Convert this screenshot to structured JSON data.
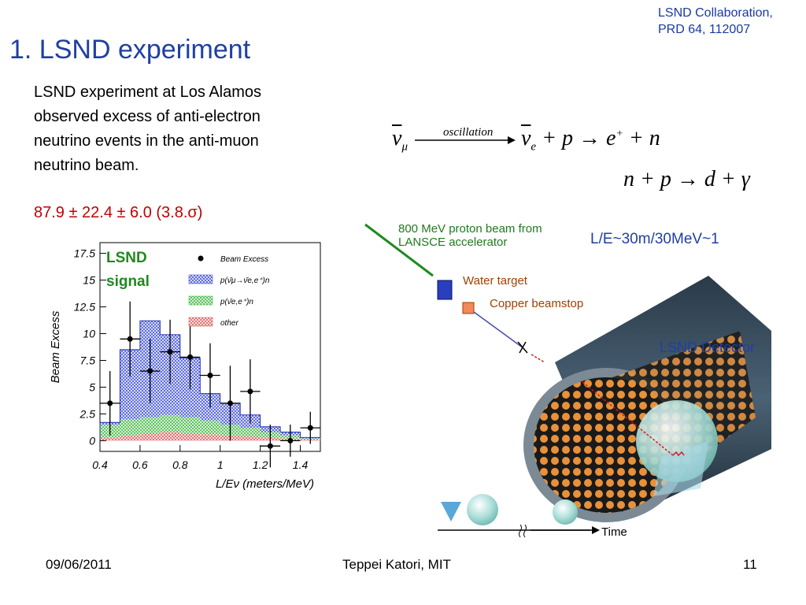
{
  "slide": {
    "title": "1. LSND experiment",
    "reference": "LSND Collaboration,\nPRD 64, 112007",
    "description_lines": [
      "LSND experiment at Los Alamos",
      "observed excess of anti-electron",
      "neutrino events in the anti-muon",
      "neutrino beam."
    ],
    "result": "87.9 ± 22.4 ± 6.0  (3.8.σ)",
    "equation1": {
      "over_arrow": "oscillation",
      "lhs": "ν",
      "lhs_sub": "μ",
      "rhs": "ν",
      "rhs_sub": "e",
      "rest": " + p → e",
      "rest_sup": "+",
      "tail": " + n"
    },
    "equation2": "n + p → d + γ"
  },
  "footer": {
    "date": "09/06/2011",
    "author": "Teppei Katori, MIT",
    "page": "11"
  },
  "detector_figure": {
    "beam_label": "800 MeV proton beam from\nLANSCE accelerator",
    "le_label": "L/E~30m/30MeV~1",
    "water_target": "Water target",
    "copper_beamstop": "Copper beamstop",
    "detector_label": "LSND Detector",
    "time_label": "Time"
  },
  "chart_data": {
    "type": "bar",
    "ylabel": "Beam Excess",
    "xlabel": "L/Eν (meters/MeV)",
    "signal_label_1": "LSND",
    "signal_label_2": "signal",
    "xlim": [
      0.4,
      1.5
    ],
    "ylim": [
      -1,
      18.5
    ],
    "x_ticks": [
      "0.4",
      "0.6",
      "0.8",
      "1",
      "1.2",
      "1.4"
    ],
    "x_tick_values": [
      0.4,
      0.6,
      0.8,
      1.0,
      1.2,
      1.4
    ],
    "y_ticks": [
      "0",
      "2.5",
      "5",
      "7.5",
      "10",
      "12.5",
      "15",
      "17.5"
    ],
    "y_tick_values": [
      0,
      2.5,
      5,
      7.5,
      10,
      12.5,
      15,
      17.5
    ],
    "bin_edges": [
      0.4,
      0.5,
      0.6,
      0.7,
      0.8,
      0.9,
      1.0,
      1.1,
      1.2,
      1.3,
      1.4,
      1.5
    ],
    "legend": [
      {
        "label": "Beam Excess",
        "kind": "points"
      },
      {
        "label": "p(ν̄μ→ν̄e,e⁺)n",
        "kind": "blue"
      },
      {
        "label": "p(ν̄e,e⁺)n",
        "kind": "green"
      },
      {
        "label": "other",
        "kind": "red"
      }
    ],
    "series": [
      {
        "name": "other",
        "color": "#e06060",
        "values": [
          0.3,
          0.5,
          0.7,
          0.8,
          0.7,
          0.6,
          0.5,
          0.4,
          0.3,
          0.2,
          0.1
        ]
      },
      {
        "name": "p(ν̄e,e⁺)n",
        "color": "#44bb44",
        "values": [
          1.2,
          1.5,
          1.5,
          1.6,
          1.5,
          1.3,
          1.0,
          0.8,
          0.5,
          0.3,
          0.1
        ]
      },
      {
        "name": "p(ν̄μ→ν̄e,e⁺)n",
        "color": "#4455dd",
        "values": [
          0.2,
          6.5,
          9.0,
          7.5,
          5.5,
          2.5,
          2.0,
          1.2,
          0.5,
          0.3,
          0.1
        ]
      }
    ],
    "data_points": {
      "name": "Beam Excess",
      "x": [
        0.45,
        0.55,
        0.65,
        0.75,
        0.85,
        0.95,
        1.05,
        1.15,
        1.25,
        1.35,
        1.45
      ],
      "y": [
        3.5,
        9.5,
        6.5,
        8.3,
        7.8,
        6.1,
        3.5,
        4.6,
        -0.5,
        0.0,
        1.2
      ],
      "err": [
        3.0,
        3.5,
        3.0,
        3.0,
        3.0,
        3.0,
        3.5,
        3.0,
        2.0,
        1.5,
        1.5
      ]
    }
  }
}
